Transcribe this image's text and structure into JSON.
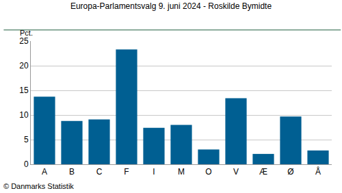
{
  "chart_data": {
    "type": "bar",
    "title": "Europa-Parlamentsvalg 9. juni 2024 - Roskilde Bymidte",
    "y_label": "Pct.",
    "annotations": [
      "© Danmarks Statistik"
    ],
    "categories": [
      "A",
      "B",
      "C",
      "F",
      "I",
      "M",
      "O",
      "V",
      "Æ",
      "Ø",
      "Å"
    ],
    "values": [
      13.7,
      8.8,
      9.1,
      23.3,
      7.4,
      8.0,
      3.0,
      13.4,
      2.1,
      9.7,
      2.8
    ],
    "color": "#005f92",
    "ylim": [
      0,
      25
    ],
    "yticks": [
      0,
      5,
      10,
      15,
      20,
      25
    ],
    "grid": true
  }
}
